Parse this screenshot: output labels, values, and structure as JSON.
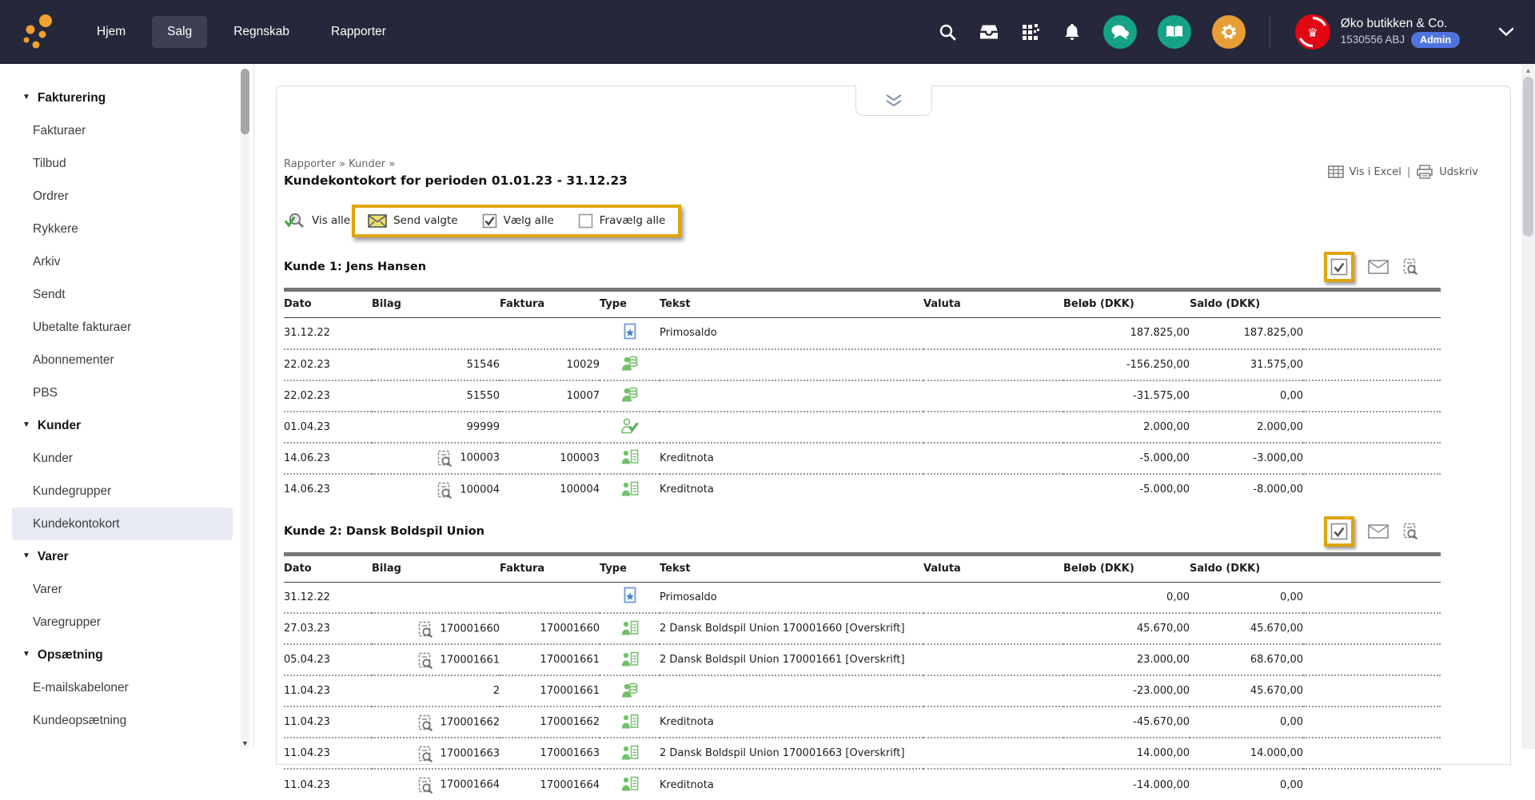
{
  "colors": {
    "navbar_bg": "#26273a",
    "navbar_active_bg": "#3e3f52",
    "green_circle": "#16a385",
    "orange_circle": "#e79e37",
    "admin_badge": "#4f74dd",
    "logo_orange": "#f0a12f",
    "avatar_red": "#e30613",
    "yellow_highlight": "#e0a50a",
    "sidebar_selected": "#e7eaf3",
    "type_icon_green": "#72bf6a",
    "type_icon_blue": "#4d82d2"
  },
  "navbar": {
    "menu": [
      {
        "label": "Hjem",
        "active": false
      },
      {
        "label": "Salg",
        "active": true
      },
      {
        "label": "Regnskab",
        "active": false
      },
      {
        "label": "Rapporter",
        "active": false
      }
    ],
    "icons": [
      "search-icon",
      "inbox-icon",
      "apps-grid-icon",
      "notifications-bell-icon",
      "chat-icon",
      "help-book-icon",
      "settings-gear-icon"
    ],
    "company": {
      "name": "Øko butikken & Co.",
      "account": "1530556 ABJ",
      "badge": "Admin"
    }
  },
  "sidebar": {
    "selected_item": "Kundekontokort",
    "sections": [
      {
        "label": "Fakturering",
        "items": [
          "Fakturaer",
          "Tilbud",
          "Ordrer",
          "Rykkere",
          "Arkiv",
          "Sendt",
          "Ubetalte fakturaer",
          "Abonnementer",
          "PBS"
        ]
      },
      {
        "label": "Kunder",
        "items": [
          "Kunder",
          "Kundegrupper",
          "Kundekontokort"
        ]
      },
      {
        "label": "Varer",
        "items": [
          "Varer",
          "Varegrupper"
        ]
      },
      {
        "label": "Opsætning",
        "items": [
          "E-mailskabeloner",
          "Kundeopsætning"
        ]
      }
    ]
  },
  "report": {
    "breadcrumb": "Rapporter » Kunder »",
    "title": "Kundekontokort for perioden 01.01.23 - 31.12.23",
    "toolbar": {
      "vis_alle": "Vis alle",
      "send_valgte": "Send valgte",
      "vaelg_alle": "Vælg alle",
      "fravaelg_alle": "Fravælg alle"
    },
    "actions": {
      "excel": "Vis i Excel",
      "separator": "|",
      "print": "Udskriv"
    },
    "columns": [
      "Dato",
      "Bilag",
      "Faktura",
      "Type",
      "Tekst",
      "Valuta",
      "Beløb (DKK)",
      "Saldo (DKK)"
    ],
    "customers": [
      {
        "label": "Kunde 1: Jens Hansen",
        "rows": [
          {
            "dato": "31.12.22",
            "bilag": "",
            "bilag_icon": false,
            "faktura": "",
            "type": "primo",
            "tekst": "Primosaldo",
            "valuta": "",
            "belob": "187.825,00",
            "saldo": "187.825,00"
          },
          {
            "dato": "22.02.23",
            "bilag": "51546",
            "bilag_icon": false,
            "faktura": "10029",
            "type": "payment",
            "tekst": "",
            "valuta": "",
            "belob": "-156.250,00",
            "saldo": "31.575,00"
          },
          {
            "dato": "22.02.23",
            "bilag": "51550",
            "bilag_icon": false,
            "faktura": "10007",
            "type": "payment",
            "tekst": "",
            "valuta": "",
            "belob": "-31.575,00",
            "saldo": "0,00"
          },
          {
            "dato": "01.04.23",
            "bilag": "99999",
            "bilag_icon": false,
            "faktura": "",
            "type": "customer-check",
            "tekst": "",
            "valuta": "",
            "belob": "2.000,00",
            "saldo": "2.000,00"
          },
          {
            "dato": "14.06.23",
            "bilag": "100003",
            "bilag_icon": true,
            "faktura": "100003",
            "type": "invoice",
            "tekst": "Kreditnota",
            "valuta": "",
            "belob": "-5.000,00",
            "saldo": "-3.000,00"
          },
          {
            "dato": "14.06.23",
            "bilag": "100004",
            "bilag_icon": true,
            "faktura": "100004",
            "type": "invoice",
            "tekst": "Kreditnota",
            "valuta": "",
            "belob": "-5.000,00",
            "saldo": "-8.000,00"
          }
        ]
      },
      {
        "label": "Kunde 2: Dansk Boldspil Union",
        "rows": [
          {
            "dato": "31.12.22",
            "bilag": "",
            "bilag_icon": false,
            "faktura": "",
            "type": "primo",
            "tekst": "Primosaldo",
            "valuta": "",
            "belob": "0,00",
            "saldo": "0,00"
          },
          {
            "dato": "27.03.23",
            "bilag": "170001660",
            "bilag_icon": true,
            "faktura": "170001660",
            "type": "invoice",
            "tekst": "2 Dansk Boldspil Union 170001660 [Overskrift]",
            "valuta": "",
            "belob": "45.670,00",
            "saldo": "45.670,00"
          },
          {
            "dato": "05.04.23",
            "bilag": "170001661",
            "bilag_icon": true,
            "faktura": "170001661",
            "type": "invoice",
            "tekst": "2 Dansk Boldspil Union 170001661 [Overskrift]",
            "valuta": "",
            "belob": "23.000,00",
            "saldo": "68.670,00"
          },
          {
            "dato": "11.04.23",
            "bilag": "2",
            "bilag_icon": false,
            "faktura": "170001661",
            "type": "payment",
            "tekst": "",
            "valuta": "",
            "belob": "-23.000,00",
            "saldo": "45.670,00"
          },
          {
            "dato": "11.04.23",
            "bilag": "170001662",
            "bilag_icon": true,
            "faktura": "170001662",
            "type": "invoice",
            "tekst": "Kreditnota",
            "valuta": "",
            "belob": "-45.670,00",
            "saldo": "0,00"
          },
          {
            "dato": "11.04.23",
            "bilag": "170001663",
            "bilag_icon": true,
            "faktura": "170001663",
            "type": "invoice",
            "tekst": "2 Dansk Boldspil Union 170001663 [Overskrift]",
            "valuta": "",
            "belob": "14.000,00",
            "saldo": "14.000,00"
          },
          {
            "dato": "11.04.23",
            "bilag": "170001664",
            "bilag_icon": true,
            "faktura": "170001664",
            "type": "invoice",
            "tekst": "Kreditnota",
            "valuta": "",
            "belob": "-14.000,00",
            "saldo": "0,00"
          }
        ]
      }
    ]
  }
}
